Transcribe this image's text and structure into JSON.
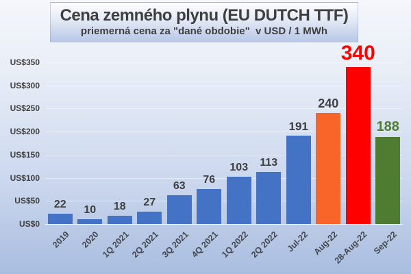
{
  "chart_data": {
    "type": "bar",
    "title": "Cena zemného plynu (EU DUTCH TTF)",
    "subtitle": "priemerná cena za \"dané obdobie\"  v USD / 1 MWh",
    "unit": "USD / 1 MWh",
    "categories": [
      "2019",
      "2020",
      "1Q 2021",
      "2Q 2021",
      "3Q 2021",
      "4Q 2021",
      "1Q 2022",
      "2Q 2022",
      "Jul-22",
      "Aug-22",
      "28-Aug-22",
      "Sep-22"
    ],
    "values": [
      22,
      10,
      18,
      27,
      63,
      76,
      103,
      113,
      191,
      240,
      340,
      188
    ],
    "bar_colors": [
      "#4472C4",
      "#4472C4",
      "#4472C4",
      "#4472C4",
      "#4472C4",
      "#4472C4",
      "#4472C4",
      "#4472C4",
      "#4472C4",
      "#F96528",
      "#FE0000",
      "#4E7D31"
    ],
    "value_label_colors": [
      "#3F3F3F",
      "#3F3F3F",
      "#3F3F3F",
      "#3F3F3F",
      "#3F3F3F",
      "#3F3F3F",
      "#3F3F3F",
      "#3F3F3F",
      "#3F3F3F",
      "#3F3F3F",
      "#FF0000",
      "#4E7D31"
    ],
    "value_label_sizes": [
      16,
      16,
      16,
      16,
      16,
      16,
      16,
      16,
      17,
      18,
      30,
      20
    ],
    "yticks": [
      "US$0",
      "US$50",
      "US$100",
      "US$150",
      "US$200",
      "US$250",
      "US$300",
      "US$350"
    ],
    "ytick_values": [
      0,
      50,
      100,
      150,
      200,
      250,
      300,
      350
    ],
    "ylim": [
      0,
      350
    ],
    "xlabel": "",
    "ylabel": "",
    "grid": true,
    "legend": "none"
  },
  "colors": {
    "background_top": "#F4F6FB",
    "background_bottom": "#A9BDDF",
    "title_text": "#3F3F3F",
    "axis_text": "#404040",
    "bar_blue": "#4472C4",
    "bar_orange": "#F96528",
    "bar_red": "#FE0000",
    "bar_green": "#4E7D31"
  }
}
